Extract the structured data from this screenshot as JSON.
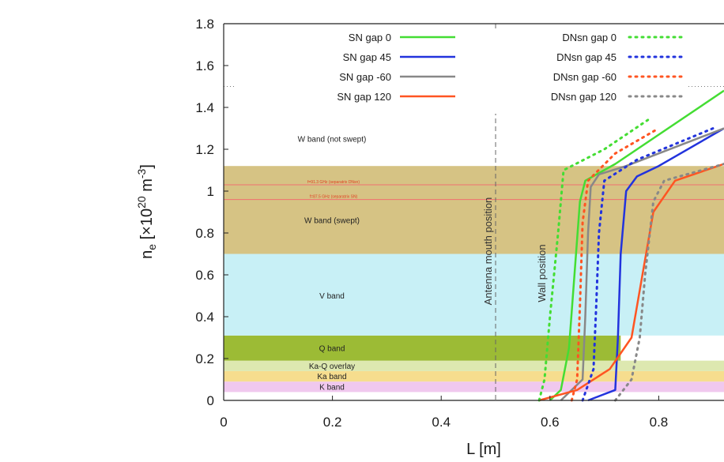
{
  "chart_data": {
    "type": "line",
    "xlabel": "L [m]",
    "ylabel_main": "n",
    "ylabel_sub": "e",
    "ylabel_rest1": " [×10",
    "ylabel_sup1": "20",
    "ylabel_rest2": " m",
    "ylabel_sup2": "-3",
    "ylabel_rest3": "]",
    "xlim": [
      0,
      0.92
    ],
    "ylim": [
      0,
      1.8
    ],
    "x_ticks": [
      "0",
      "0.2",
      "0.4",
      "0.6",
      "0.8"
    ],
    "x_tick_values": [
      0,
      0.2,
      0.4,
      0.6,
      0.8
    ],
    "y_ticks": [
      "0",
      "0.2",
      "0.4",
      "0.6",
      "0.8",
      "1",
      "1.2",
      "1.4",
      "1.6",
      "1.8"
    ],
    "y_tick_values": [
      0,
      0.2,
      0.4,
      0.6,
      0.8,
      1.0,
      1.2,
      1.4,
      1.6,
      1.8
    ],
    "bands": [
      {
        "label": "K band",
        "y0": 0.04,
        "y1": 0.09,
        "x1": 0.92,
        "color": "#f0c8ee"
      },
      {
        "label": "Ka band",
        "y0": 0.09,
        "y1": 0.14,
        "x1": 0.92,
        "color": "#f6dd8e"
      },
      {
        "label": "Ka-Q overlay",
        "y0": 0.14,
        "y1": 0.19,
        "x1": 0.92,
        "color": "#dde8b0"
      },
      {
        "label": "Q band",
        "y0": 0.19,
        "y1": 0.31,
        "x1": 0.73,
        "color": "#9cbb35"
      },
      {
        "label": "V band",
        "y0": 0.31,
        "y1": 0.7,
        "x1": 0.92,
        "color": "#c8f0f6"
      },
      {
        "label": "W band (swept)",
        "y0": 0.7,
        "y1": 1.12,
        "x1": 0.92,
        "color": "#d6c384"
      }
    ],
    "band_label_positions": [
      {
        "label": "K band",
        "y": 0.065
      },
      {
        "label": "Ka band",
        "y": 0.115
      },
      {
        "label": "Ka-Q overlay",
        "y": 0.165
      },
      {
        "label": "Q band",
        "y": 0.25
      },
      {
        "label": "V band",
        "y": 0.5
      },
      {
        "label": "W band (swept)",
        "y": 0.86
      },
      {
        "label": "W band (not swept)",
        "y": 1.25
      }
    ],
    "frequency_lines": [
      {
        "label": "f=91.3 GHz (separatrix DNsn)",
        "y": 1.03
      },
      {
        "label": "f=87.5 GHz (separatrix SN)",
        "y": 0.96
      }
    ],
    "hline_dotted_y": 1.5,
    "vlines": [
      {
        "label": "Antenna mouth position",
        "x": 0.5,
        "style": "dashed"
      },
      {
        "label": "Wall position",
        "x": 0.58,
        "style": "none"
      }
    ],
    "series": [
      {
        "name": "SN gap 0",
        "style": "solid",
        "color": "#44dd33",
        "x": [
          0.6,
          0.62,
          0.635,
          0.645,
          0.655,
          0.665,
          0.72,
          0.92
        ],
        "y": [
          0.0,
          0.05,
          0.25,
          0.6,
          0.95,
          1.05,
          1.13,
          1.48
        ]
      },
      {
        "name": "SN gap 45",
        "style": "solid",
        "color": "#2233dd",
        "x": [
          0.67,
          0.72,
          0.725,
          0.73,
          0.74,
          0.76,
          0.8,
          0.92
        ],
        "y": [
          0.0,
          0.05,
          0.3,
          0.7,
          1.0,
          1.07,
          1.12,
          1.3
        ]
      },
      {
        "name": "SN gap -60",
        "style": "solid",
        "color": "#888888",
        "x": [
          0.62,
          0.66,
          0.665,
          0.67,
          0.675,
          0.69,
          0.74,
          0.92
        ],
        "y": [
          0.0,
          0.1,
          0.4,
          0.8,
          1.02,
          1.08,
          1.12,
          1.3
        ]
      },
      {
        "name": "SN gap 120",
        "style": "solid",
        "color": "#ff5522",
        "x": [
          0.58,
          0.65,
          0.71,
          0.75,
          0.77,
          0.79,
          0.83,
          0.92
        ],
        "y": [
          0.0,
          0.05,
          0.15,
          0.3,
          0.6,
          0.9,
          1.05,
          1.13
        ]
      },
      {
        "name": "DNsn gap 0",
        "style": "dotted",
        "color": "#44dd33",
        "x": [
          0.58,
          0.59,
          0.6,
          0.615,
          0.625,
          0.7,
          0.78
        ],
        "y": [
          0.0,
          0.1,
          0.4,
          0.8,
          1.1,
          1.2,
          1.34
        ]
      },
      {
        "name": "DNsn gap 45",
        "style": "dotted",
        "color": "#2233dd",
        "x": [
          0.66,
          0.68,
          0.685,
          0.69,
          0.7,
          0.76,
          0.9
        ],
        "y": [
          0.0,
          0.15,
          0.45,
          0.8,
          1.05,
          1.15,
          1.3
        ]
      },
      {
        "name": "DNsn gap -60",
        "style": "dotted",
        "color": "#ff5522",
        "x": [
          0.64,
          0.65,
          0.655,
          0.66,
          0.67,
          0.72,
          0.8
        ],
        "y": [
          0.0,
          0.1,
          0.45,
          0.85,
          1.05,
          1.18,
          1.3
        ]
      },
      {
        "name": "DNsn gap 120",
        "style": "dotted",
        "color": "#888888",
        "x": [
          0.72,
          0.75,
          0.765,
          0.775,
          0.79,
          0.81,
          0.92
        ],
        "y": [
          0.0,
          0.1,
          0.3,
          0.6,
          0.95,
          1.05,
          1.13
        ]
      }
    ],
    "legend_placement": "top",
    "grid": false
  }
}
